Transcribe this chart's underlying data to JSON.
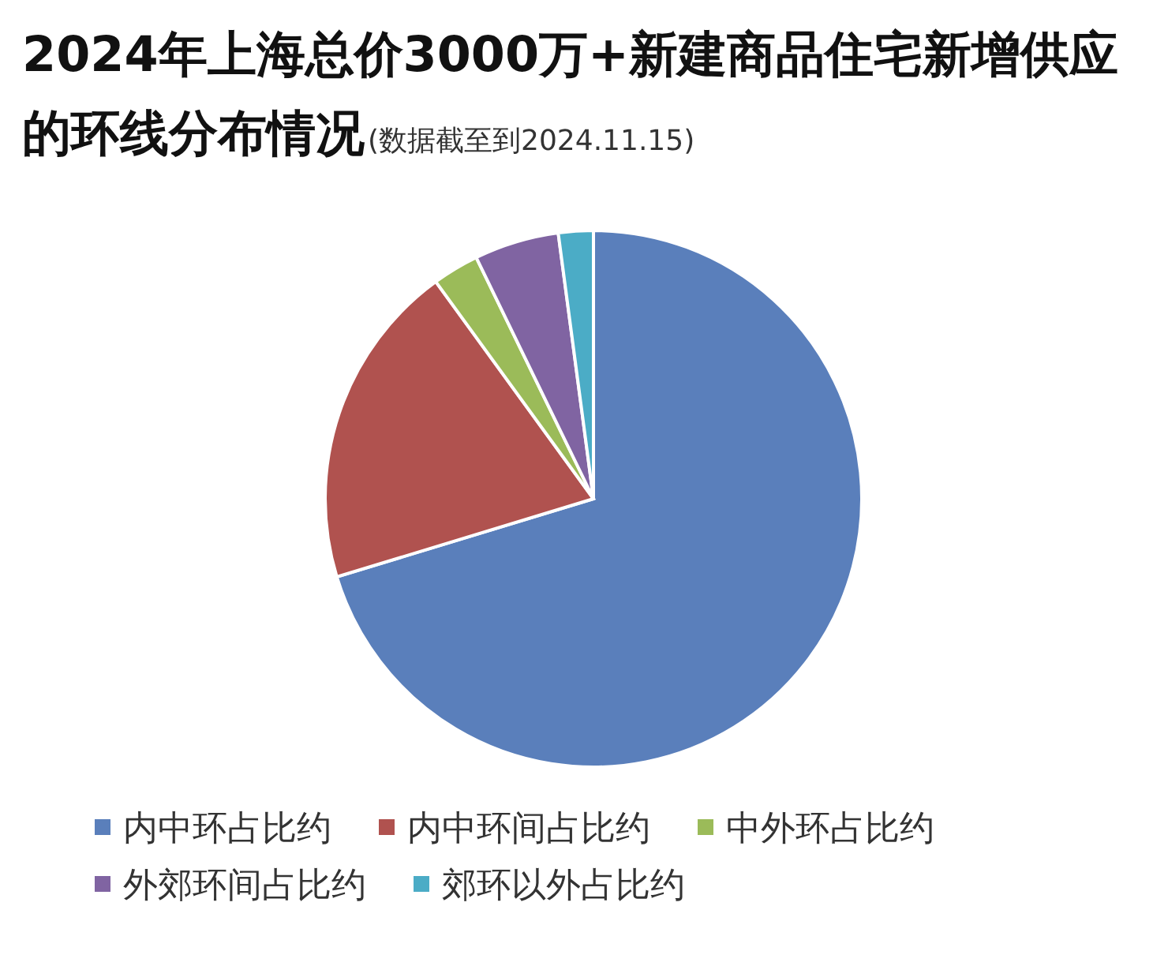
{
  "chart_data": {
    "type": "pie",
    "title": "2024年上海总价3000万+新建商品住宅新增供应的环线分布情况",
    "subtitle": "(数据截至到2024.11.15)",
    "categories": [
      "内中环占比约",
      "内中环间占比约",
      "中外环占比约",
      "外郊环间占比约",
      "郊环以外占比约"
    ],
    "values": [
      70.3,
      19.7,
      2.8,
      5.1,
      2.1
    ],
    "colors": [
      "#5a7fbb",
      "#b0524f",
      "#9bbb59",
      "#8064a2",
      "#4bacc6"
    ],
    "legend": "bottom"
  }
}
